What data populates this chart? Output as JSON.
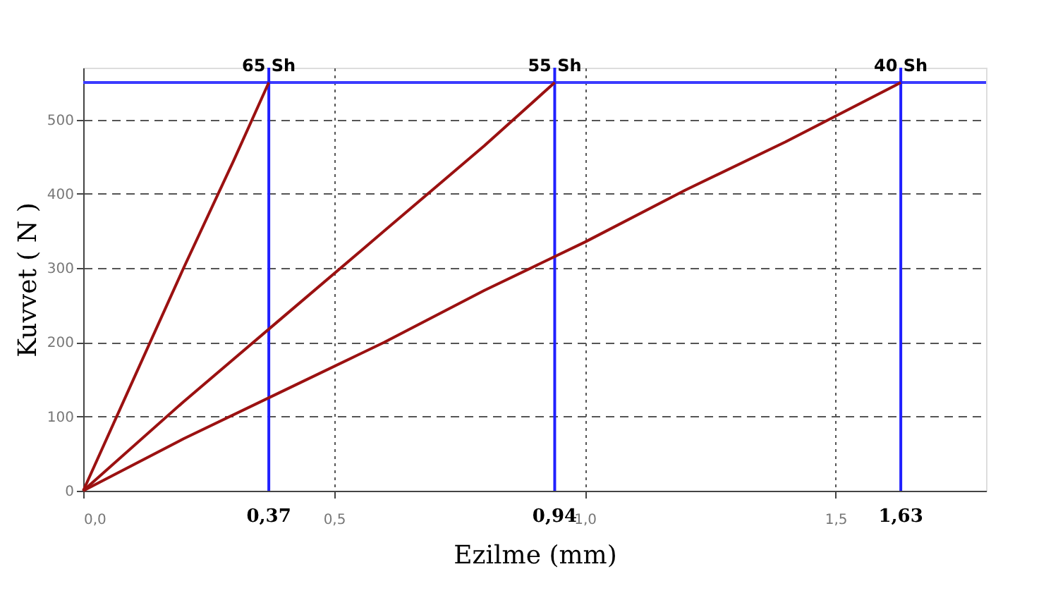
{
  "chart_data": {
    "type": "line",
    "xlabel": "Ezilme (mm)",
    "ylabel": "Kuvvet ( N )",
    "series": [
      {
        "name": "65 Sh",
        "color": "#9b1111",
        "x": [
          0,
          0.1,
          0.2,
          0.3,
          0.37
        ],
        "values": [
          0,
          150,
          300,
          445,
          550
        ]
      },
      {
        "name": "55 Sh",
        "color": "#9b1111",
        "x": [
          0,
          0.2,
          0.4,
          0.6,
          0.8,
          0.94
        ],
        "values": [
          0,
          120,
          235,
          350,
          465,
          550
        ]
      },
      {
        "name": "40 Sh",
        "color": "#9b1111",
        "x": [
          0,
          0.2,
          0.4,
          0.6,
          0.8,
          1.0,
          1.2,
          1.4,
          1.63
        ],
        "values": [
          0,
          70,
          135,
          200,
          270,
          335,
          405,
          470,
          550
        ]
      }
    ],
    "xlim": [
      0,
      1.8
    ],
    "ylim": [
      0,
      570
    ],
    "xticks": [
      {
        "value": 0,
        "label": "0,0"
      },
      {
        "value": 0.5,
        "label": "0,5"
      },
      {
        "value": 1.0,
        "label": "1,0"
      },
      {
        "value": 1.5,
        "label": "1,5"
      }
    ],
    "yticks": [
      0,
      100,
      200,
      300,
      400,
      500
    ],
    "grid": true,
    "marker": "none",
    "line_style": "solid",
    "ref_lines": [
      {
        "axis": "y",
        "value": 550,
        "label": null,
        "color": "#3b3bff"
      },
      {
        "axis": "x",
        "value": 0.37,
        "label": "0,37",
        "color": "#2020ff"
      },
      {
        "axis": "x",
        "value": 0.94,
        "label": "0,94",
        "color": "#2020ff"
      },
      {
        "axis": "x",
        "value": 1.63,
        "label": "1,63",
        "color": "#2020ff"
      }
    ]
  }
}
